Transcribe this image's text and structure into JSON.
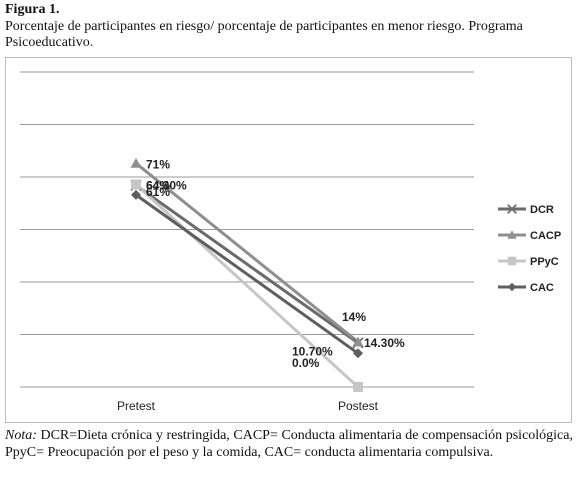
{
  "figure_label": "Figura 1.",
  "caption": "Porcentaje de participantes en riesgo/ porcentaje de participantes en menor  riesgo. Programa Psicoeducativo.",
  "note_label": "Nota:",
  "note_text": " DCR=Dieta crónica y restringida, CACP= Conducta alimentaria de compensación psicológica, PpyC= Preocupación por el peso y la comida, CAC= conducta alimentaria compulsiva.",
  "colors": {
    "DCR": "#6b6b6b",
    "CACP": "#8f8f8f",
    "PPyC": "#c6c6c6",
    "CAC": "#5e5e5e",
    "grid": "#9a9a9a"
  },
  "chart_data": {
    "type": "line",
    "categories": [
      "Pretest",
      "Postest"
    ],
    "ylim": [
      0,
      100
    ],
    "grid": true,
    "legend": "right",
    "series": [
      {
        "name": "DCR",
        "marker": "x",
        "values": [
          64,
          14
        ],
        "labels": [
          "64%",
          "14%"
        ]
      },
      {
        "name": "CACP",
        "marker": "triangle",
        "values": [
          71,
          14.3
        ],
        "labels": [
          "71%",
          "14.30%"
        ]
      },
      {
        "name": "PPyC",
        "marker": "square",
        "values": [
          64.3,
          0
        ],
        "labels": [
          "64.30%",
          "0.0%"
        ]
      },
      {
        "name": "CAC",
        "marker": "diamond",
        "values": [
          61,
          10.7
        ],
        "labels": [
          "61%",
          "10.70%"
        ]
      }
    ]
  }
}
